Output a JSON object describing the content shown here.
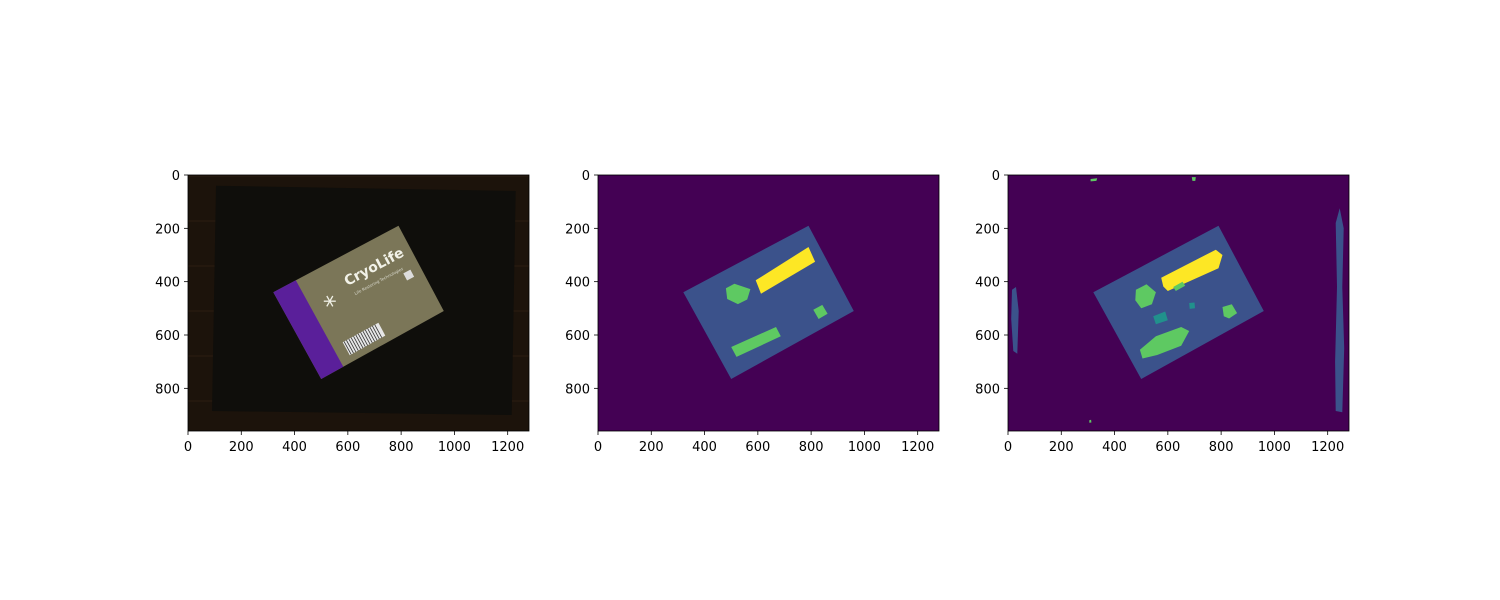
{
  "chart_data": [
    {
      "type": "image",
      "description_role": "input photo",
      "x_ticks": [
        0,
        200,
        400,
        600,
        800,
        1000,
        1200
      ],
      "y_ticks": [
        0,
        200,
        400,
        600,
        800
      ],
      "xlim": [
        0,
        1280
      ],
      "ylim": [
        960,
        0
      ],
      "package": {
        "brand": "CryoLife",
        "tagline": "Life Restoring Technologies",
        "corners": [
          [
            320,
            440
          ],
          [
            790,
            190
          ],
          [
            960,
            510
          ],
          [
            500,
            765
          ]
        ],
        "colors": {
          "background": "#1c130b",
          "tray": "#0f0e0b",
          "package": "#7b7658",
          "purple_band": "#5a1f9a",
          "barcode": "#e6e6e6"
        }
      }
    },
    {
      "type": "segmentation",
      "description_role": "ground truth mask",
      "x_ticks": [
        0,
        200,
        400,
        600,
        800,
        1000,
        1200
      ],
      "y_ticks": [
        0,
        200,
        400,
        600,
        800
      ],
      "xlim": [
        0,
        1280
      ],
      "ylim": [
        960,
        0
      ],
      "class_colors": {
        "0": "#440154",
        "1": "#3b528b",
        "2": "#21918c",
        "3": "#5ec962",
        "4": "#fde725"
      },
      "regions": [
        {
          "class": 1,
          "points": [
            [
              320,
              440
            ],
            [
              790,
              190
            ],
            [
              960,
              510
            ],
            [
              500,
              765
            ]
          ]
        },
        {
          "class": 4,
          "points": [
            [
              592,
              395
            ],
            [
              790,
              270
            ],
            [
              815,
              325
            ],
            [
              612,
              445
            ]
          ]
        },
        {
          "class": 3,
          "points": [
            [
              480,
              425
            ],
            [
              512,
              408
            ],
            [
              572,
              428
            ],
            [
              560,
              467
            ],
            [
              525,
              484
            ],
            [
              485,
              465
            ]
          ]
        },
        {
          "class": 3,
          "points": [
            [
              500,
              645
            ],
            [
              668,
              570
            ],
            [
              686,
              605
            ],
            [
              520,
              682
            ]
          ]
        },
        {
          "class": 3,
          "points": [
            [
              808,
              505
            ],
            [
              842,
              487
            ],
            [
              862,
              520
            ],
            [
              828,
              540
            ]
          ]
        }
      ]
    },
    {
      "type": "segmentation",
      "description_role": "predicted mask",
      "x_ticks": [
        0,
        200,
        400,
        600,
        800,
        1000,
        1200
      ],
      "y_ticks": [
        0,
        200,
        400,
        600,
        800
      ],
      "xlim": [
        0,
        1280
      ],
      "ylim": [
        960,
        0
      ],
      "class_colors": {
        "0": "#440154",
        "1": "#3b528b",
        "2": "#21918c",
        "3": "#5ec962",
        "4": "#fde725"
      },
      "regions": [
        {
          "class": 1,
          "points": [
            [
              320,
              440
            ],
            [
              790,
              190
            ],
            [
              960,
              510
            ],
            [
              500,
              765
            ]
          ]
        },
        {
          "class": 1,
          "points": [
            [
              15,
              430
            ],
            [
              30,
              420
            ],
            [
              40,
              510
            ],
            [
              35,
              670
            ],
            [
              20,
              660
            ],
            [
              12,
              540
            ]
          ]
        },
        {
          "class": 1,
          "points": [
            [
              1230,
              180
            ],
            [
              1245,
              125
            ],
            [
              1260,
              200
            ],
            [
              1255,
              420
            ],
            [
              1262,
              650
            ],
            [
              1255,
              890
            ],
            [
              1230,
              885
            ],
            [
              1228,
              700
            ],
            [
              1235,
              420
            ]
          ]
        },
        {
          "class": 4,
          "points": [
            [
              575,
              385
            ],
            [
              780,
              280
            ],
            [
              805,
              300
            ],
            [
              790,
              350
            ],
            [
              600,
              435
            ],
            [
              583,
              418
            ]
          ]
        },
        {
          "class": 3,
          "points": [
            [
              480,
              430
            ],
            [
              520,
              410
            ],
            [
              555,
              440
            ],
            [
              540,
              485
            ],
            [
              500,
              500
            ],
            [
              478,
              470
            ]
          ]
        },
        {
          "class": 3,
          "points": [
            [
              495,
              655
            ],
            [
              555,
              605
            ],
            [
              650,
              570
            ],
            [
              680,
              585
            ],
            [
              650,
              640
            ],
            [
              560,
              675
            ],
            [
              505,
              688
            ]
          ]
        },
        {
          "class": 3,
          "points": [
            [
              805,
              495
            ],
            [
              840,
              485
            ],
            [
              860,
              518
            ],
            [
              830,
              538
            ],
            [
              810,
              530
            ]
          ]
        },
        {
          "class": 3,
          "points": [
            [
              620,
              420
            ],
            [
              655,
              400
            ],
            [
              665,
              415
            ],
            [
              630,
              435
            ]
          ]
        },
        {
          "class": 2,
          "points": [
            [
              545,
              530
            ],
            [
              590,
              512
            ],
            [
              600,
              545
            ],
            [
              555,
              560
            ]
          ]
        },
        {
          "class": 2,
          "points": [
            [
              680,
              480
            ],
            [
              700,
              478
            ],
            [
              702,
              500
            ],
            [
              682,
              502
            ]
          ]
        },
        {
          "class": 3,
          "points": [
            [
              305,
              920
            ],
            [
              312,
              918
            ],
            [
              313,
              928
            ],
            [
              305,
              929
            ]
          ]
        },
        {
          "class": 3,
          "points": [
            [
              310,
              15
            ],
            [
              335,
              12
            ],
            [
              332,
              22
            ],
            [
              310,
              24
            ]
          ]
        },
        {
          "class": 3,
          "points": [
            [
              690,
              8
            ],
            [
              705,
              8
            ],
            [
              703,
              22
            ],
            [
              692,
              22
            ]
          ]
        }
      ]
    }
  ]
}
